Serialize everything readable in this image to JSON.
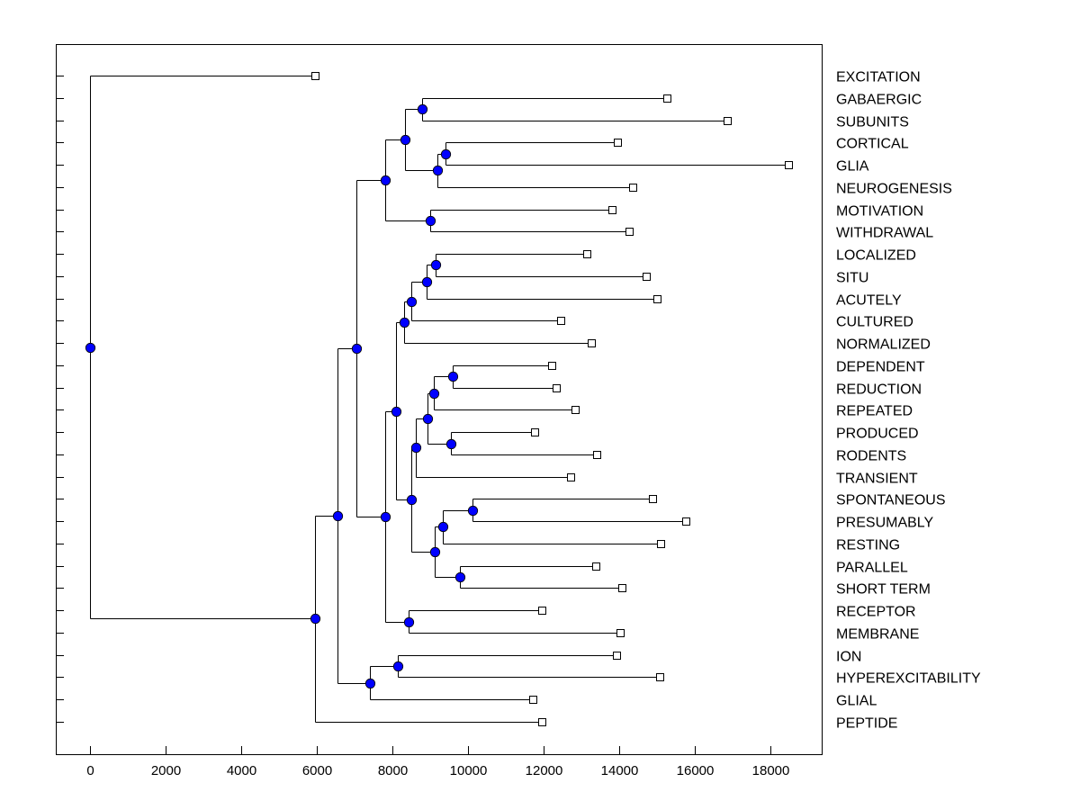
{
  "chart_data": {
    "type": "dendrogram",
    "title": "",
    "xlabel": "",
    "ylabel": "",
    "xlim": [
      -900,
      19350
    ],
    "x_ticks": [
      0,
      2000,
      4000,
      6000,
      8000,
      10000,
      12000,
      14000,
      16000,
      18000
    ],
    "grid": false,
    "node_color": "#0000ff",
    "leaf_marker": "open-square",
    "tree": {
      "h": 0,
      "children": [
        {
          "leaf": "EXCITATION",
          "h": 5950
        },
        {
          "h": 5950,
          "children": [
            {
              "h": 6540,
              "children": [
                {
                  "h": 7040,
                  "children": [
                    {
                      "h": 7800,
                      "children": [
                        {
                          "h": 8330,
                          "children": [
                            {
                              "h": 8780,
                              "children": [
                                {
                                  "leaf": "GABAERGIC",
                                  "h": 15250
                                },
                                {
                                  "leaf": "SUBUNITS",
                                  "h": 16850
                                }
                              ]
                            },
                            {
                              "h": 9190,
                              "children": [
                                {
                                  "h": 9400,
                                  "children": [
                                    {
                                      "leaf": "CORTICAL",
                                      "h": 13940
                                    },
                                    {
                                      "leaf": "GLIA",
                                      "h": 18480
                                    }
                                  ]
                                },
                                {
                                  "leaf": "NEUROGENESIS",
                                  "h": 14350
                                }
                              ]
                            }
                          ]
                        },
                        {
                          "h": 9000,
                          "children": [
                            {
                              "leaf": "MOTIVATION",
                              "h": 13800
                            },
                            {
                              "leaf": "WITHDRAWAL",
                              "h": 14250
                            }
                          ]
                        }
                      ]
                    },
                    {
                      "h": 7800,
                      "children": [
                        {
                          "h": 8090,
                          "children": [
                            {
                              "h": 8310,
                              "children": [
                                {
                                  "h": 8500,
                                  "children": [
                                    {
                                      "h": 8900,
                                      "children": [
                                        {
                                          "h": 9140,
                                          "children": [
                                            {
                                              "leaf": "LOCALIZED",
                                              "h": 13130
                                            },
                                            {
                                              "leaf": "SITU",
                                              "h": 14700
                                            }
                                          ]
                                        },
                                        {
                                          "leaf": "ACUTELY",
                                          "h": 14990
                                        }
                                      ]
                                    },
                                    {
                                      "leaf": "CULTURED",
                                      "h": 12440
                                    }
                                  ]
                                },
                                {
                                  "leaf": "NORMALIZED",
                                  "h": 13250
                                }
                              ]
                            },
                            {
                              "h": 8500,
                              "children": [
                                {
                                  "h": 8620,
                                  "children": [
                                    {
                                      "h": 8930,
                                      "children": [
                                        {
                                          "h": 9100,
                                          "children": [
                                            {
                                              "h": 9600,
                                              "children": [
                                                {
                                                  "leaf": "DEPENDENT",
                                                  "h": 12200
                                                },
                                                {
                                                  "leaf": "REDUCTION",
                                                  "h": 12340
                                                }
                                              ]
                                            },
                                            {
                                              "leaf": "REPEATED",
                                              "h": 12840
                                            }
                                          ]
                                        },
                                        {
                                          "h": 9550,
                                          "children": [
                                            {
                                              "leaf": "PRODUCED",
                                              "h": 11770
                                            },
                                            {
                                              "leaf": "RODENTS",
                                              "h": 13390
                                            }
                                          ]
                                        }
                                      ]
                                    },
                                    {
                                      "leaf": "TRANSIENT",
                                      "h": 12700
                                    }
                                  ]
                                },
                                {
                                  "h": 9120,
                                  "children": [
                                    {
                                      "h": 9330,
                                      "children": [
                                        {
                                          "h": 10120,
                                          "children": [
                                            {
                                              "leaf": "SPONTANEOUS",
                                              "h": 14870
                                            },
                                            {
                                              "leaf": "PRESUMABLY",
                                              "h": 15760
                                            }
                                          ]
                                        },
                                        {
                                          "leaf": "RESTING",
                                          "h": 15090
                                        }
                                      ]
                                    },
                                    {
                                      "h": 9790,
                                      "children": [
                                        {
                                          "leaf": "PARALLEL",
                                          "h": 13370
                                        },
                                        {
                                          "leaf": "SHORT TERM",
                                          "h": 14060
                                        }
                                      ]
                                    }
                                  ]
                                }
                              ]
                            }
                          ]
                        },
                        {
                          "h": 8430,
                          "children": [
                            {
                              "leaf": "RECEPTOR",
                              "h": 11960
                            },
                            {
                              "leaf": "MEMBRANE",
                              "h": 14010
                            }
                          ]
                        }
                      ]
                    }
                  ]
                },
                {
                  "h": 7400,
                  "children": [
                    {
                      "h": 8140,
                      "children": [
                        {
                          "leaf": "ION",
                          "h": 13920
                        },
                        {
                          "leaf": "HYPEREXCITABILITY",
                          "h": 15060
                        }
                      ]
                    },
                    {
                      "leaf": "GLIAL",
                      "h": 11700
                    }
                  ]
                }
              ]
            },
            {
              "leaf": "PEPTIDE",
              "h": 11940
            }
          ]
        }
      ]
    }
  }
}
